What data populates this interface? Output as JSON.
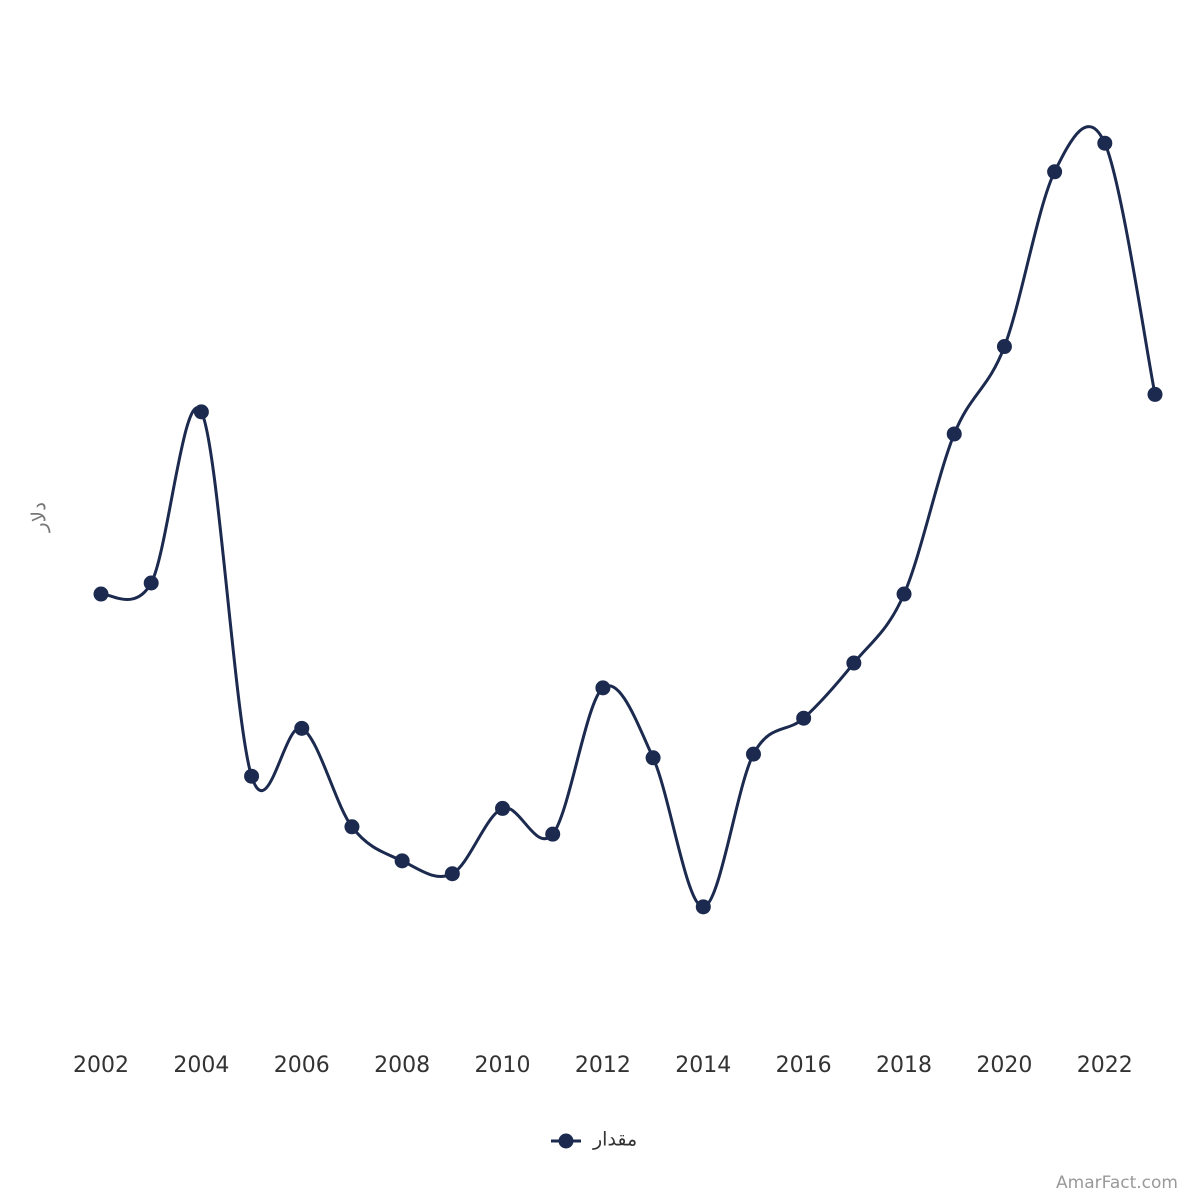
{
  "chart_data": {
    "type": "line",
    "y_label": "دلار",
    "x": [
      2002,
      2003,
      2004,
      2005,
      2006,
      2007,
      2008,
      2009,
      2010,
      2011,
      2012,
      2013,
      2014,
      2015,
      2016,
      2017,
      2018,
      2019,
      2020,
      2021,
      2022,
      2023
    ],
    "series": [
      {
        "name": "مقدار",
        "color": "#1b2a4e",
        "values": [
          46.3,
          47.5,
          66.1,
          26.5,
          31.7,
          21.0,
          17.3,
          15.9,
          23.0,
          20.2,
          36.1,
          28.5,
          12.3,
          28.9,
          32.8,
          38.8,
          46.3,
          63.7,
          73.2,
          92.2,
          95.3,
          68.0
        ]
      }
    ],
    "xlim": [
      2002,
      2023
    ],
    "xticks": [
      2002,
      2004,
      2006,
      2008,
      2010,
      2012,
      2014,
      2016,
      2018,
      2020,
      2022
    ],
    "ylim": [
      0,
      100
    ],
    "smooth": true
  },
  "watermark": "AmarFact.com"
}
